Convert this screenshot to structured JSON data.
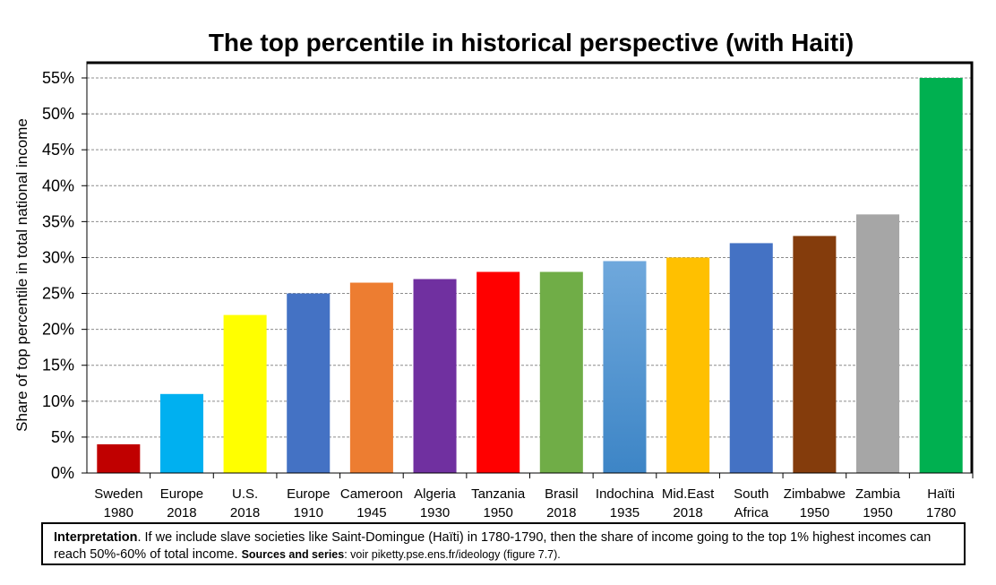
{
  "chart_data": {
    "type": "bar",
    "title": "The top percentile in historical perspective (with Haiti)",
    "ylabel": "Share of top percentile in total national income",
    "xlabel": "",
    "ylim": [
      0,
      0.55
    ],
    "yticks": [
      "0%",
      "5%",
      "10%",
      "15%",
      "20%",
      "25%",
      "30%",
      "35%",
      "40%",
      "45%",
      "50%",
      "55%"
    ],
    "grid": true,
    "categories": [
      {
        "line1": "Sweden",
        "line2": "1980"
      },
      {
        "line1": "Europe",
        "line2": "2018"
      },
      {
        "line1": "U.S.",
        "line2": "2018"
      },
      {
        "line1": "Europe",
        "line2": "1910"
      },
      {
        "line1": "Cameroon",
        "line2": "1945"
      },
      {
        "line1": "Algeria",
        "line2": "1930"
      },
      {
        "line1": "Tanzania",
        "line2": "1950"
      },
      {
        "line1": "Brasil",
        "line2": "2018"
      },
      {
        "line1": "Indochina",
        "line2": "1935"
      },
      {
        "line1": "Mid.East",
        "line2": "2018"
      },
      {
        "line1": "South",
        "line2": "Africa"
      },
      {
        "line1": "Zimbabwe",
        "line2": "1950"
      },
      {
        "line1": "Zambia",
        "line2": "1950"
      },
      {
        "line1": "Haïti",
        "line2": "1780"
      }
    ],
    "values": [
      0.04,
      0.11,
      0.22,
      0.25,
      0.265,
      0.27,
      0.28,
      0.28,
      0.295,
      0.3,
      0.32,
      0.33,
      0.36,
      0.55
    ],
    "colors": [
      "#C00000",
      "#00B0F0",
      "#FFFF00",
      "#4472C4",
      "#ED7D31",
      "#7030A0",
      "#FF0000",
      "#70AD47",
      "#5B9BD5",
      "#FFC000",
      "#4472C4",
      "#843C0C",
      "#A6A6A6",
      "#00B050"
    ]
  },
  "note": {
    "interp_label": "Interpretation",
    "interp_text": ". If we include slave societies like Saint-Domingue (Haïti) in 1780-1790, then the share of income going to the top 1% highest incomes can reach 50%-60% of total income.",
    "sources_label": "Sources and series",
    "sources_text": ": voir piketty.pse.ens.fr/ideology (figure 7.7)."
  }
}
